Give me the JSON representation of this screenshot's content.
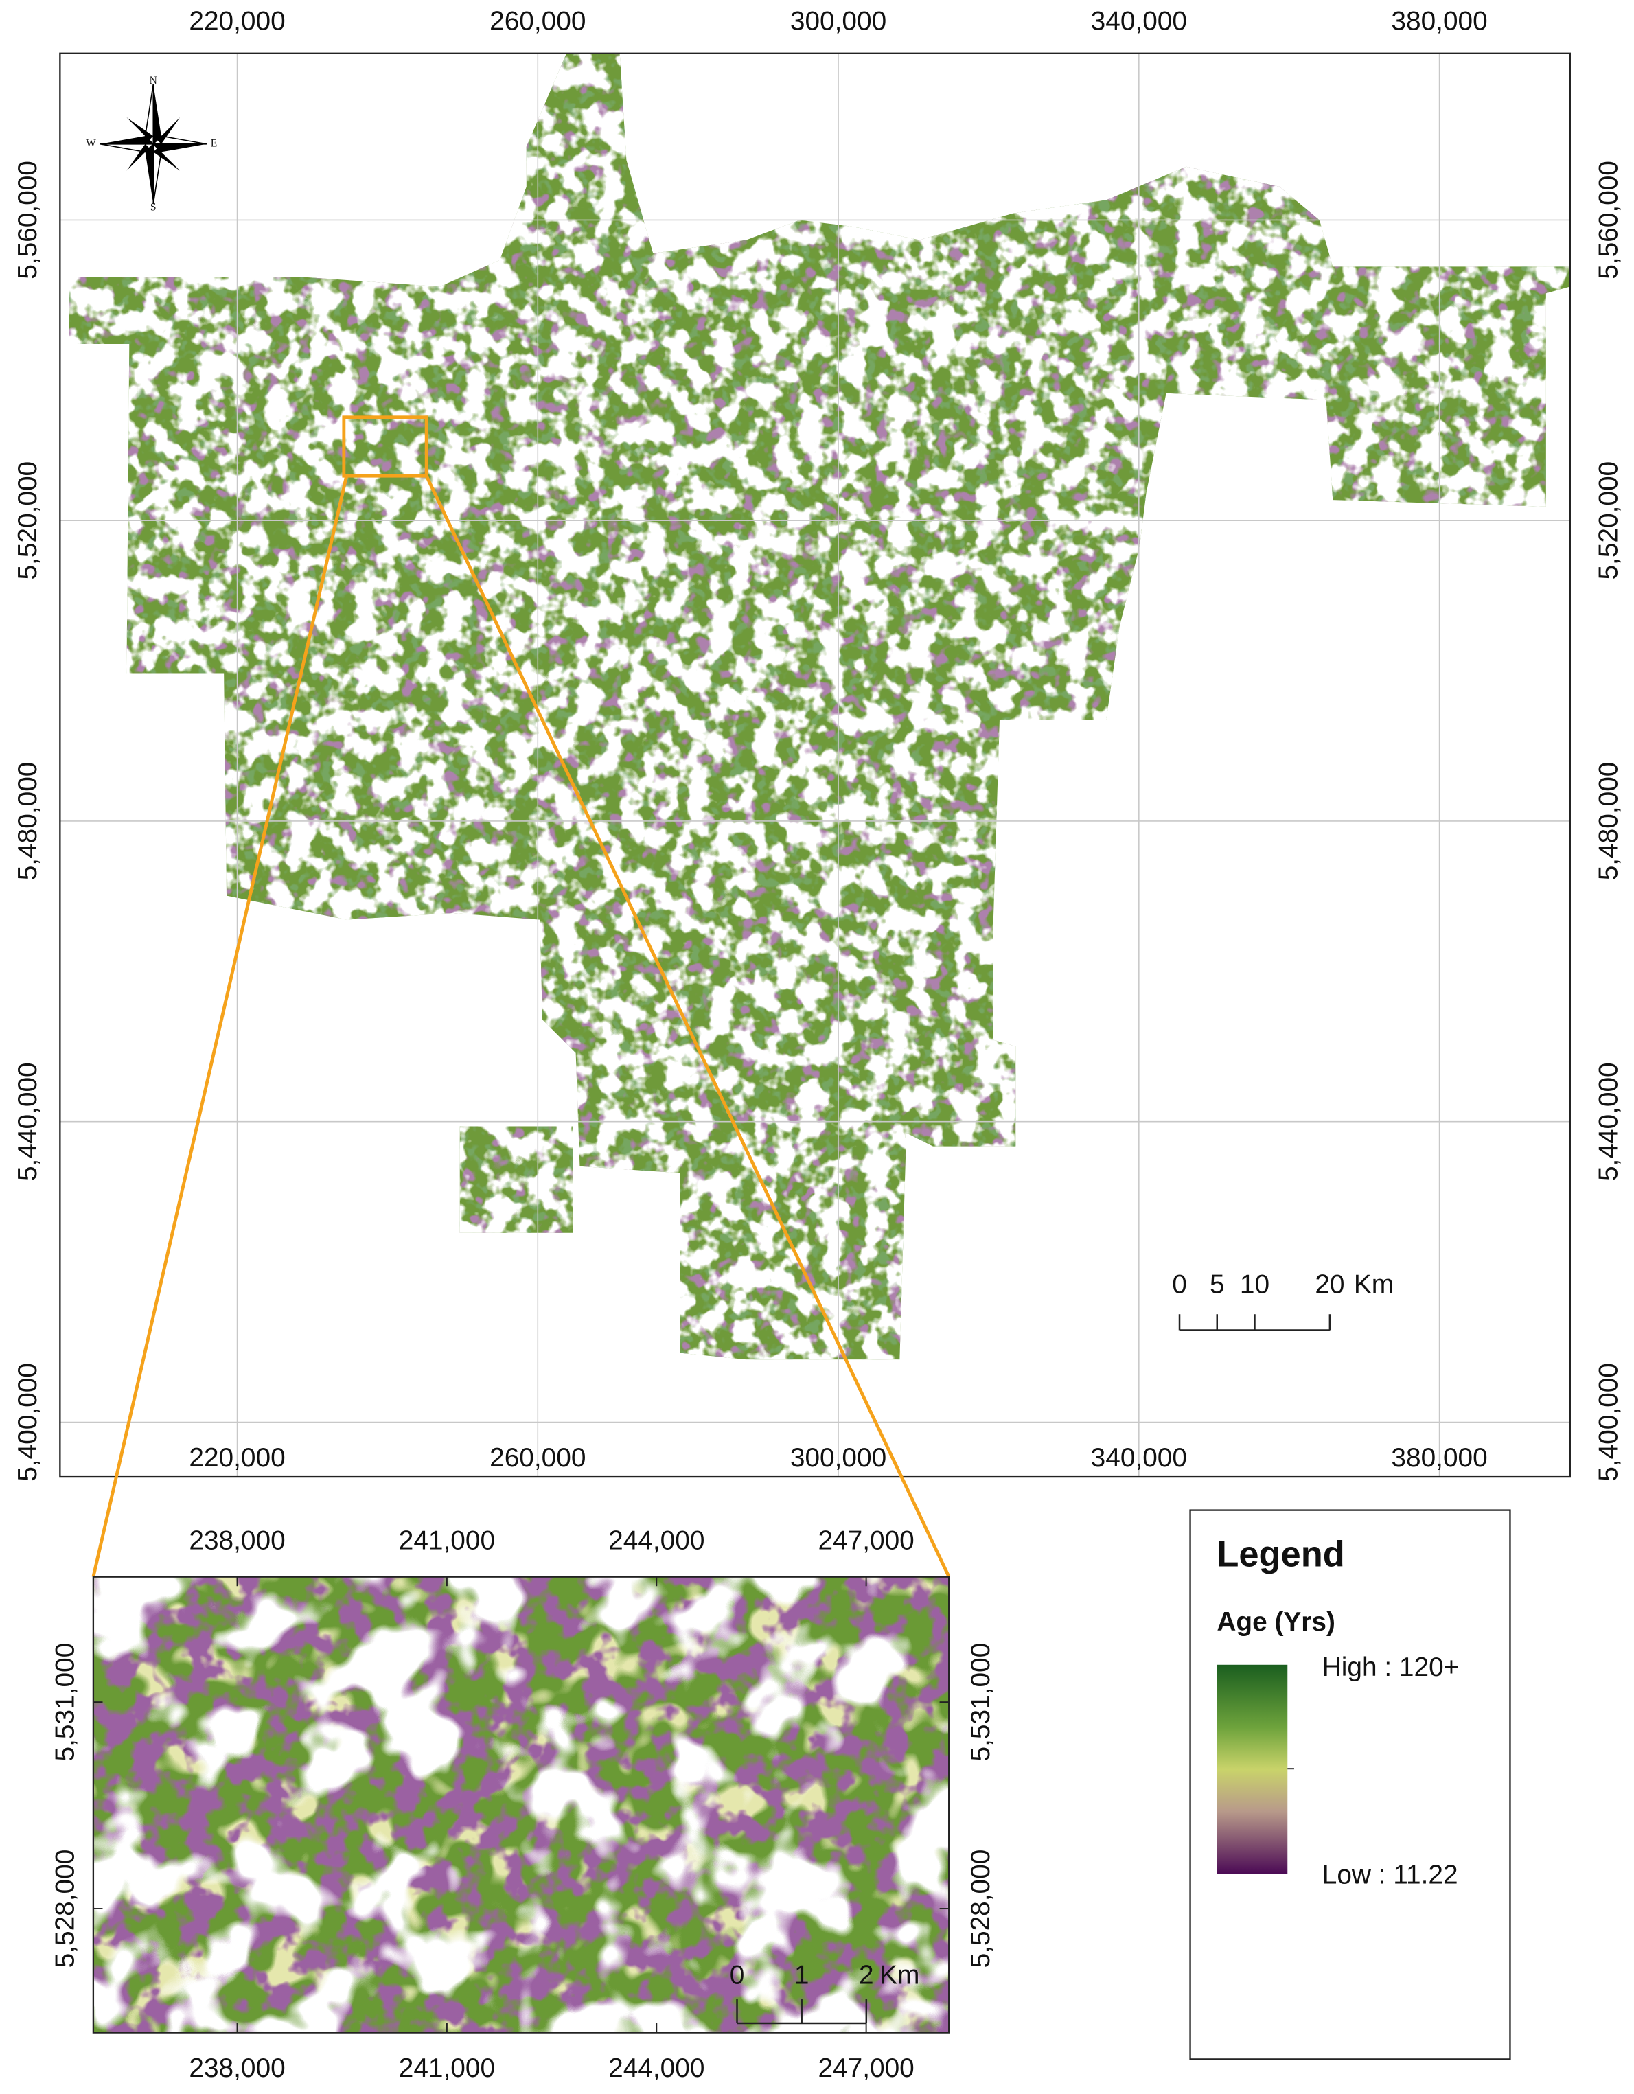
{
  "main_map": {
    "x_ticks": [
      {
        "value": 220000,
        "label": "220,000"
      },
      {
        "value": 260000,
        "label": "260,000"
      },
      {
        "value": 300000,
        "label": "300,000"
      },
      {
        "value": 340000,
        "label": "340,000"
      },
      {
        "value": 380000,
        "label": "380,000"
      }
    ],
    "y_ticks": [
      {
        "value": 5400000,
        "label": "5,400,000"
      },
      {
        "value": 5440000,
        "label": "5,440,000"
      },
      {
        "value": 5480000,
        "label": "5,480,000"
      },
      {
        "value": 5520000,
        "label": "5,520,000"
      },
      {
        "value": 5560000,
        "label": "5,560,000"
      }
    ],
    "scale_bar": {
      "ticks": [
        0,
        5,
        10,
        20
      ],
      "unit": "Km"
    },
    "compass": {
      "north": "N",
      "east": "E",
      "south": "S",
      "west": "W"
    }
  },
  "inset_map": {
    "x_ticks": [
      {
        "value": 238000,
        "label": "238,000"
      },
      {
        "value": 241000,
        "label": "241,000"
      },
      {
        "value": 244000,
        "label": "244,000"
      },
      {
        "value": 247000,
        "label": "247,000"
      }
    ],
    "y_ticks": [
      {
        "value": 5528000,
        "label": "5,528,000"
      },
      {
        "value": 5531000,
        "label": "5,531,000"
      }
    ],
    "scale_bar": {
      "ticks": [
        0,
        1,
        2
      ],
      "unit": "Km"
    }
  },
  "legend": {
    "title": "Legend",
    "field": "Age (Yrs)",
    "high": "High : 120+",
    "low": "Low : 11.22"
  }
}
